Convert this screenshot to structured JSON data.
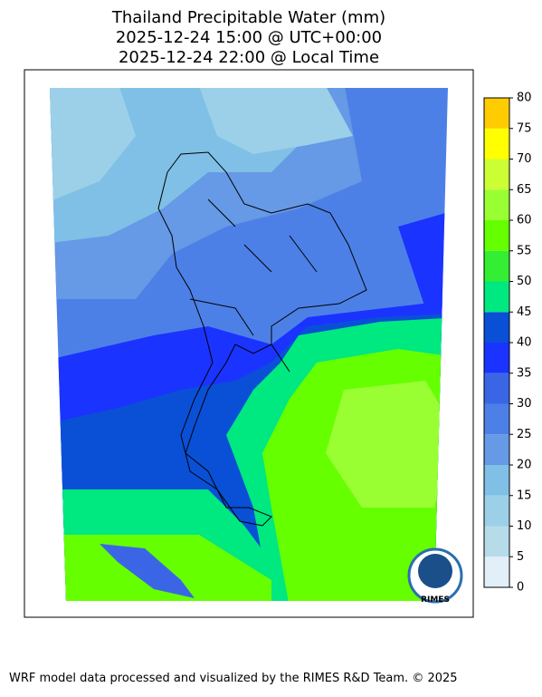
{
  "header": {
    "title_lines": [
      "Thailand Precipitable Water (mm)",
      "2025-12-24 15:00 @ UTC+00:00",
      "2025-12-24 22:00 @ Local Time"
    ]
  },
  "colorbar": {
    "ticks": [
      0,
      5,
      10,
      15,
      20,
      25,
      30,
      35,
      40,
      45,
      50,
      55,
      60,
      65,
      70,
      75,
      80
    ],
    "colors": [
      "#e2eff8",
      "#b6dcea",
      "#9bd0e8",
      "#80c0e6",
      "#6699e6",
      "#4d80e6",
      "#3a66e6",
      "#1a33ff",
      "#0a50d6",
      "#00e880",
      "#33ee33",
      "#66ff00",
      "#99ff33",
      "#ccff33",
      "#ffff00",
      "#ffcc00"
    ]
  },
  "logo": {
    "text": "RIMES"
  },
  "footer": {
    "text": "WRF model data processed and visualized by the RIMES R&D Team. © 2025"
  }
}
